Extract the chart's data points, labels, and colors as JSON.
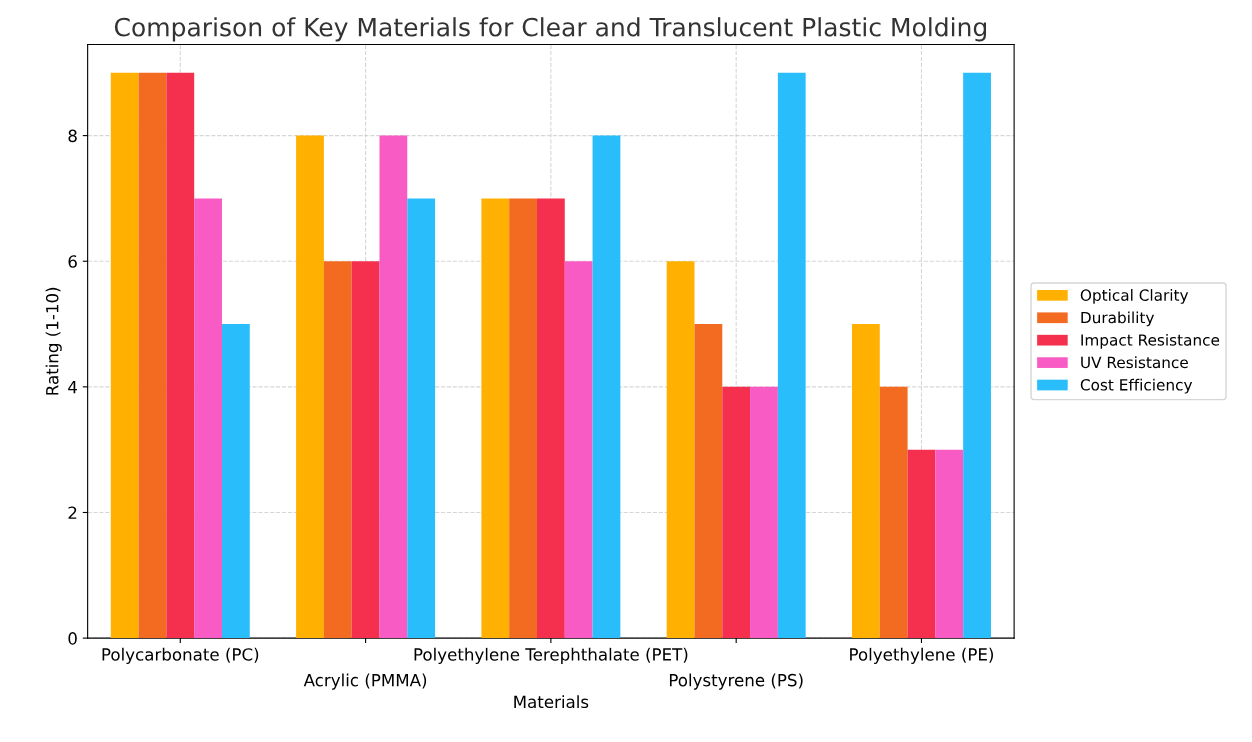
{
  "chart_data": {
    "type": "bar",
    "title": "Comparison of Key Materials for Clear and Translucent Plastic Molding",
    "xlabel": "Materials",
    "ylabel": "Rating (1-10)",
    "categories": [
      "Polycarbonate (PC)",
      "Acrylic (PMMA)",
      "Polyethylene Terephthalate (PET)",
      "Polystyrene (PS)",
      "Polyethylene (PE)"
    ],
    "series": [
      {
        "name": "Optical Clarity",
        "color": "#ffb000",
        "values": [
          9,
          8,
          7,
          6,
          5
        ]
      },
      {
        "name": "Durability",
        "color": "#f26b21",
        "values": [
          9,
          6,
          7,
          5,
          4
        ]
      },
      {
        "name": "Impact Resistance",
        "color": "#f5304f",
        "values": [
          9,
          6,
          7,
          4,
          3
        ]
      },
      {
        "name": "UV Resistance",
        "color": "#f95bc4",
        "values": [
          7,
          8,
          6,
          4,
          3
        ]
      },
      {
        "name": "Cost Efficiency",
        "color": "#2abdfb",
        "values": [
          5,
          7,
          8,
          9,
          9
        ]
      }
    ],
    "ylim": [
      0,
      9.45
    ],
    "yticks": [
      0,
      2,
      4,
      6,
      8
    ],
    "grid": true,
    "legend": "right"
  }
}
